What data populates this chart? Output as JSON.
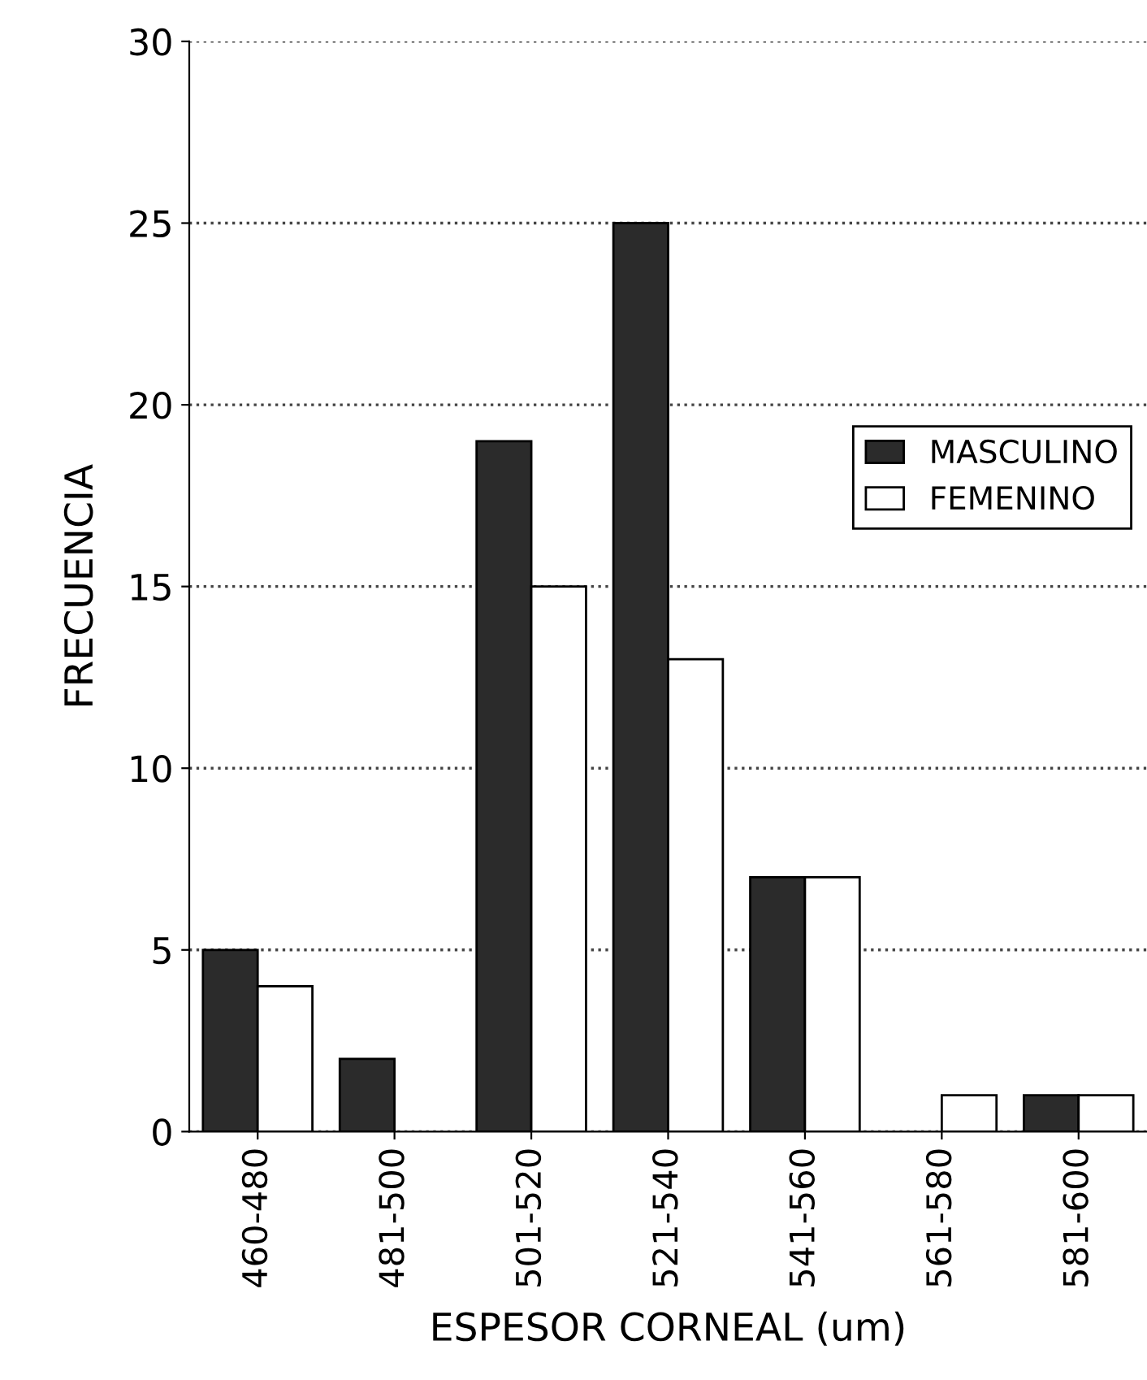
{
  "chart_data": {
    "type": "bar",
    "xlabel": "ESPESOR CORNEAL (um)",
    "ylabel": "FRECUENCIA",
    "categories": [
      "460-480",
      "481-500",
      "501-520",
      "521-540",
      "541-560",
      "561-580",
      "581-600"
    ],
    "series": [
      {
        "name": "MASCULINO",
        "color": "#2b2b2b",
        "values": [
          5,
          2,
          19,
          25,
          7,
          0,
          1
        ]
      },
      {
        "name": "FEMENINO",
        "color": "#ffffff",
        "values": [
          4,
          0,
          15,
          13,
          7,
          1,
          1
        ]
      }
    ],
    "ylim": [
      0,
      30
    ],
    "yticks": [
      0,
      5,
      10,
      15,
      20,
      25,
      30
    ],
    "grid": "y",
    "legend": "right"
  }
}
